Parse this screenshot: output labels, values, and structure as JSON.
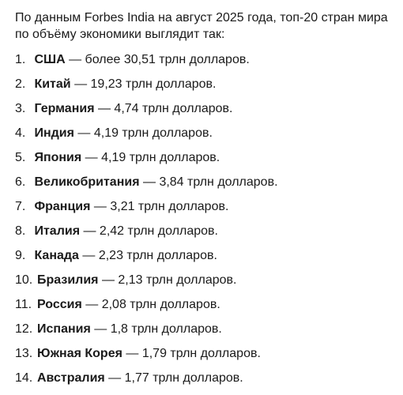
{
  "intro": "По данным Forbes India на август 2025 года, топ-20 стран мира по объёму экономики выглядит так:",
  "items": [
    {
      "num": "1.",
      "country": "США",
      "text": " — более 30,51 трлн долларов."
    },
    {
      "num": "2.",
      "country": "Китай",
      "text": " — 19,23 трлн долларов."
    },
    {
      "num": "3.",
      "country": "Германия",
      "text": " — 4,74 трлн долларов."
    },
    {
      "num": "4.",
      "country": "Индия",
      "text": " — 4,19 трлн долларов."
    },
    {
      "num": "5.",
      "country": "Япония",
      "text": " — 4,19 трлн долларов."
    },
    {
      "num": "6.",
      "country": "Великобритания",
      "text": " — 3,84 трлн долларов."
    },
    {
      "num": "7.",
      "country": "Франция",
      "text": " — 3,21 трлн долларов."
    },
    {
      "num": "8.",
      "country": "Италия",
      "text": " — 2,42 трлн долларов."
    },
    {
      "num": "9.",
      "country": "Канада",
      "text": " — 2,23 трлн долларов."
    },
    {
      "num": "10.",
      "country": "Бразилия",
      "text": " — 2,13 трлн долларов."
    },
    {
      "num": "11.",
      "country": "Россия",
      "text": " — 2,08 трлн долларов."
    },
    {
      "num": "12.",
      "country": "Испания",
      "text": " — 1,8 трлн долларов."
    },
    {
      "num": "13.",
      "country": "Южная Корея",
      "text": " — 1,79 трлн долларов."
    },
    {
      "num": "14.",
      "country": "Австралия",
      "text": " — 1,77 трлн долларов."
    }
  ]
}
